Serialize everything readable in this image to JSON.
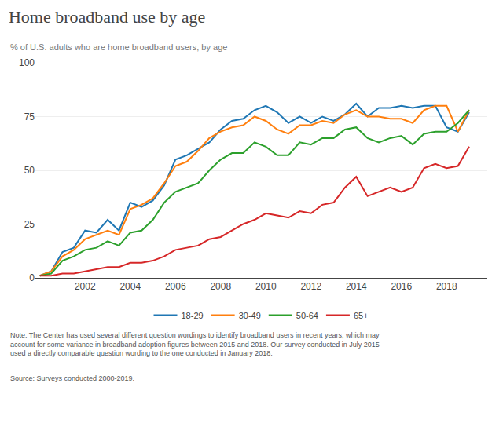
{
  "chart_data": {
    "type": "line",
    "title": "Home broadband use by age",
    "subtitle": "% of U.S. adults who are home broadband users, by age",
    "annotations": [
      "Note: The Center has used several different question wordings to identify broadband users in recent years, which may\naccount for some variance in broadband adoption figures between 2015 and 2018. Our survey conducted in July 2015\nused a directly comparable question wording to the one conducted in January 2018.",
      "Source: Surveys conducted 2000-2019."
    ],
    "x": [
      2000.0,
      2000.5,
      2001.0,
      2001.5,
      2002.0,
      2002.5,
      2003.0,
      2003.5,
      2004.0,
      2004.5,
      2005.0,
      2005.5,
      2006.0,
      2006.5,
      2007.0,
      2007.5,
      2008.0,
      2008.5,
      2009.0,
      2009.5,
      2010.0,
      2010.5,
      2011.0,
      2011.5,
      2012.0,
      2012.5,
      2013.0,
      2013.5,
      2014.0,
      2014.5,
      2015.0,
      2015.5,
      2016.0,
      2016.5,
      2017.0,
      2017.5,
      2018.0,
      2018.5,
      2019.0
    ],
    "series": [
      {
        "name": "18-29",
        "values": [
          1,
          3,
          12,
          14,
          22,
          21,
          27,
          22,
          35,
          33,
          36,
          43,
          55,
          57,
          60,
          63,
          69,
          73,
          74,
          78,
          80,
          77,
          72,
          75,
          72,
          75,
          73,
          76,
          81,
          75,
          79,
          79,
          80,
          79,
          80,
          80,
          70,
          68,
          77
        ]
      },
      {
        "name": "30-49",
        "values": [
          1,
          3,
          10,
          13,
          18,
          20,
          22,
          20,
          32,
          34,
          37,
          44,
          52,
          54,
          59,
          65,
          68,
          70,
          71,
          75,
          73,
          69,
          67,
          71,
          71,
          73,
          72,
          76,
          78,
          75,
          75,
          74,
          74,
          72,
          78,
          80,
          80,
          68,
          78
        ]
      },
      {
        "name": "50-64",
        "values": [
          1,
          2,
          8,
          10,
          13,
          14,
          17,
          15,
          21,
          22,
          27,
          35,
          40,
          42,
          44,
          50,
          55,
          58,
          58,
          63,
          61,
          57,
          57,
          63,
          62,
          65,
          65,
          69,
          70,
          65,
          63,
          65,
          66,
          62,
          67,
          68,
          68,
          72,
          78
        ]
      },
      {
        "name": "65+",
        "values": [
          1,
          1,
          2,
          2,
          3,
          4,
          5,
          5,
          7,
          7,
          8,
          10,
          13,
          14,
          15,
          18,
          19,
          22,
          25,
          27,
          30,
          29,
          28,
          31,
          30,
          34,
          35,
          42,
          47,
          38,
          40,
          42,
          40,
          42,
          51,
          53,
          51,
          52,
          61
        ]
      }
    ],
    "xlim": [
      1999.8,
      2019.8
    ],
    "xticks": [
      2002,
      2004,
      2006,
      2008,
      2010,
      2012,
      2014,
      2016,
      2018
    ],
    "ylim": [
      0,
      100
    ],
    "yticks": [
      0,
      25,
      50,
      75,
      100
    ],
    "grid": "y"
  }
}
